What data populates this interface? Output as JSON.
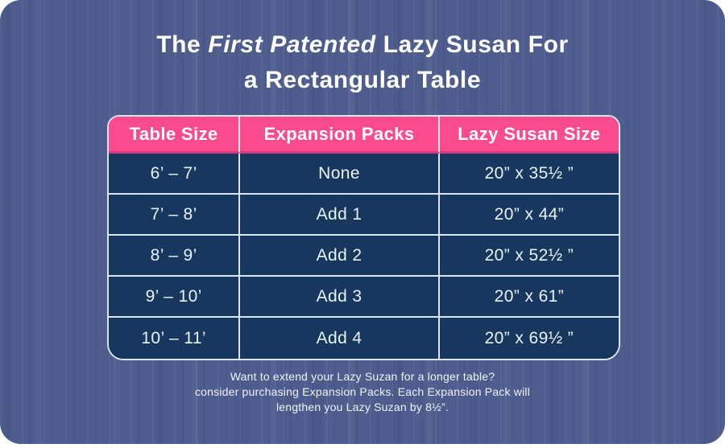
{
  "chart_data": {
    "type": "table",
    "title": "The First Patented Lazy Susan For a Rectangular Table",
    "columns": [
      "Table Size",
      "Expansion Packs",
      "Lazy Susan Size"
    ],
    "rows": [
      [
        "6’ – 7’",
        "None",
        "20” x 35½ ”"
      ],
      [
        "7’ – 8’",
        "Add 1",
        "20” x 44”"
      ],
      [
        "8’ – 9’",
        "Add 2",
        "20” x 52½ ”"
      ],
      [
        "9’ – 10’",
        "Add 3",
        "20” x 61”"
      ],
      [
        "10’ – 11’",
        "Add 4",
        "20” x 69½ ”"
      ]
    ],
    "note": "Want to extend your Lazy Suzan for a longer table? consider purchasing Expansion Packs. Each Expansion Pack will lengthen you Lazy Suzan by 8½”."
  },
  "title": {
    "prefix": "The",
    "emphasis": "First Patented",
    "suffix": "Lazy Susan For",
    "line2": "a Rectangular Table"
  },
  "footer": {
    "line1": "Want to extend your Lazy Suzan for a longer table?",
    "line2": "consider purchasing Expansion Packs. Each Expansion Pack will",
    "line3": "lengthen you Lazy Suzan by 8½”."
  },
  "colors": {
    "canvas_blue": "#4E5D8E",
    "header_pink": "#FA4B8F",
    "header_pink_dark": "#D23A7B",
    "row_navy": "#17375E",
    "grid_line": "#D9E5EF"
  }
}
